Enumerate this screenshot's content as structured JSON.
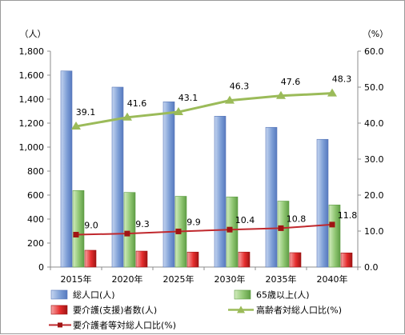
{
  "chart_data": {
    "type": "bar",
    "categories": [
      "2015年",
      "2020年",
      "2025年",
      "2030年",
      "2035年",
      "2040年"
    ],
    "y_left": {
      "unit": "（人）",
      "range": [
        0,
        1800
      ],
      "ticks": [
        "0",
        "200",
        "400",
        "600",
        "800",
        "1,000",
        "1,200",
        "1,400",
        "1,600",
        "1,800"
      ]
    },
    "y_right": {
      "unit": "（%）",
      "range": [
        0,
        60
      ],
      "ticks": [
        "0.0",
        "10.0",
        "20.0",
        "30.0",
        "40.0",
        "50.0",
        "60.0"
      ]
    },
    "bar_series": [
      {
        "name": "総人口(人)",
        "values": [
          1635,
          1500,
          1378,
          1258,
          1165,
          1065
        ],
        "color": "#8eaadb"
      },
      {
        "name": "65歳以上(人)",
        "values": [
          638,
          622,
          590,
          585,
          550,
          518
        ],
        "color": "#8fc672"
      },
      {
        "name": "要介護(支援)者数(人)",
        "values": [
          140,
          133,
          125,
          125,
          120,
          118
        ],
        "color": "#e52d2d"
      }
    ],
    "line_series": [
      {
        "name": "高齢者対総人口比(%)",
        "values": [
          39.1,
          41.6,
          43.1,
          46.3,
          47.6,
          48.3
        ],
        "labels": [
          "39.1",
          "41.6",
          "43.1",
          "46.3",
          "47.6",
          "48.3"
        ],
        "color": "#9bbb59"
      },
      {
        "name": "要介護者等対総人口比(%)",
        "values": [
          9.0,
          9.3,
          9.9,
          10.4,
          10.8,
          11.8
        ],
        "labels": [
          "9.0",
          "9.3",
          "9.9",
          "10.4",
          "10.8",
          "11.8"
        ],
        "color": "#c0282d"
      }
    ],
    "legend_position": "bottom",
    "grid": false
  }
}
